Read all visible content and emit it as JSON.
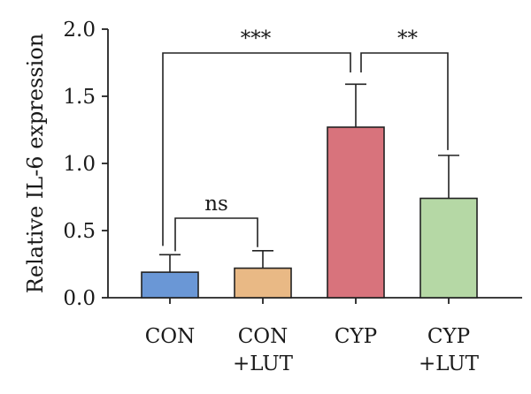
{
  "chart_data": {
    "type": "bar",
    "title": "",
    "xlabel": "",
    "ylabel": "Relative IL-6 expression",
    "ylim": [
      0,
      2.0
    ],
    "yticks": [
      "0.0",
      "0.5",
      "1.0",
      "1.5",
      "2.0"
    ],
    "grid": false,
    "categories": [
      {
        "lines": [
          "CON"
        ]
      },
      {
        "lines": [
          "CON",
          "+LUT"
        ]
      },
      {
        "lines": [
          "CYP"
        ]
      },
      {
        "lines": [
          "CYP",
          "+LUT"
        ]
      }
    ],
    "values": [
      0.19,
      0.22,
      1.27,
      0.74
    ],
    "errors": [
      0.13,
      0.13,
      0.32,
      0.32
    ],
    "colors": [
      "#6a97d6",
      "#e9b985",
      "#d8737c",
      "#b5d8a5"
    ],
    "significance": [
      {
        "label": "ns",
        "from": 0,
        "to": 1
      },
      {
        "label": "***",
        "from": 0,
        "to": 2
      },
      {
        "label": "**",
        "from": 2,
        "to": 3
      }
    ]
  }
}
